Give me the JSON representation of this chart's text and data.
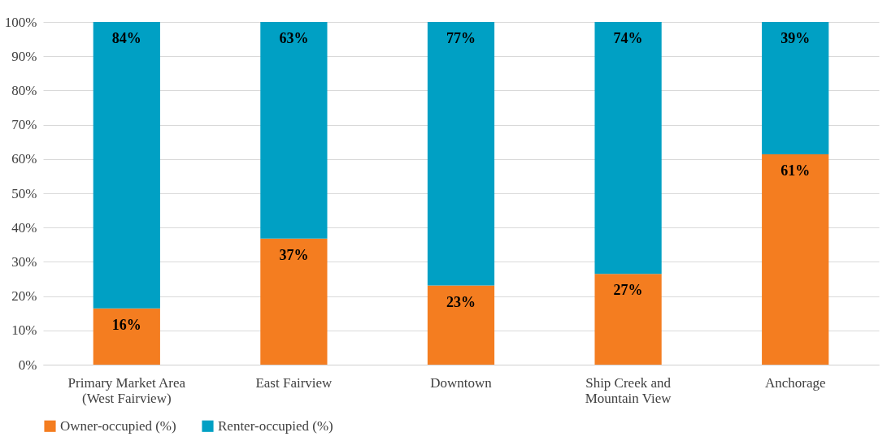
{
  "chart_data": {
    "type": "bar",
    "stacked": true,
    "categories": [
      "Primary Market Area\n(West Fairview)",
      "East Fairview",
      "Downtown",
      "Ship Creek and\nMountain View",
      "Anchorage"
    ],
    "series": [
      {
        "name": "Owner-occupied (%)",
        "color": "#f47d20",
        "values": [
          16.4,
          36.8,
          23.1,
          26.5,
          61.4
        ],
        "value_labels": [
          "16%",
          "37%",
          "23%",
          "27%",
          "61%"
        ]
      },
      {
        "name": "Renter-occupied (%)",
        "color": "#00a0c4",
        "values": [
          83.6,
          63.2,
          76.9,
          73.5,
          38.6
        ],
        "value_labels": [
          "84%",
          "63%",
          "77%",
          "74%",
          "39%"
        ]
      }
    ],
    "ylim": [
      0,
      100
    ],
    "yticks": [
      {
        "value": 0,
        "label": "0%"
      },
      {
        "value": 10,
        "label": "10%"
      },
      {
        "value": 20,
        "label": "20%"
      },
      {
        "value": 30,
        "label": "30%"
      },
      {
        "value": 40,
        "label": "40%"
      },
      {
        "value": 50,
        "label": "50%"
      },
      {
        "value": 60,
        "label": "60%"
      },
      {
        "value": 70,
        "label": "70%"
      },
      {
        "value": 80,
        "label": "80%"
      },
      {
        "value": 90,
        "label": "90%"
      },
      {
        "value": 100,
        "label": "100%"
      }
    ],
    "grid": "y",
    "legend": "bottom"
  }
}
